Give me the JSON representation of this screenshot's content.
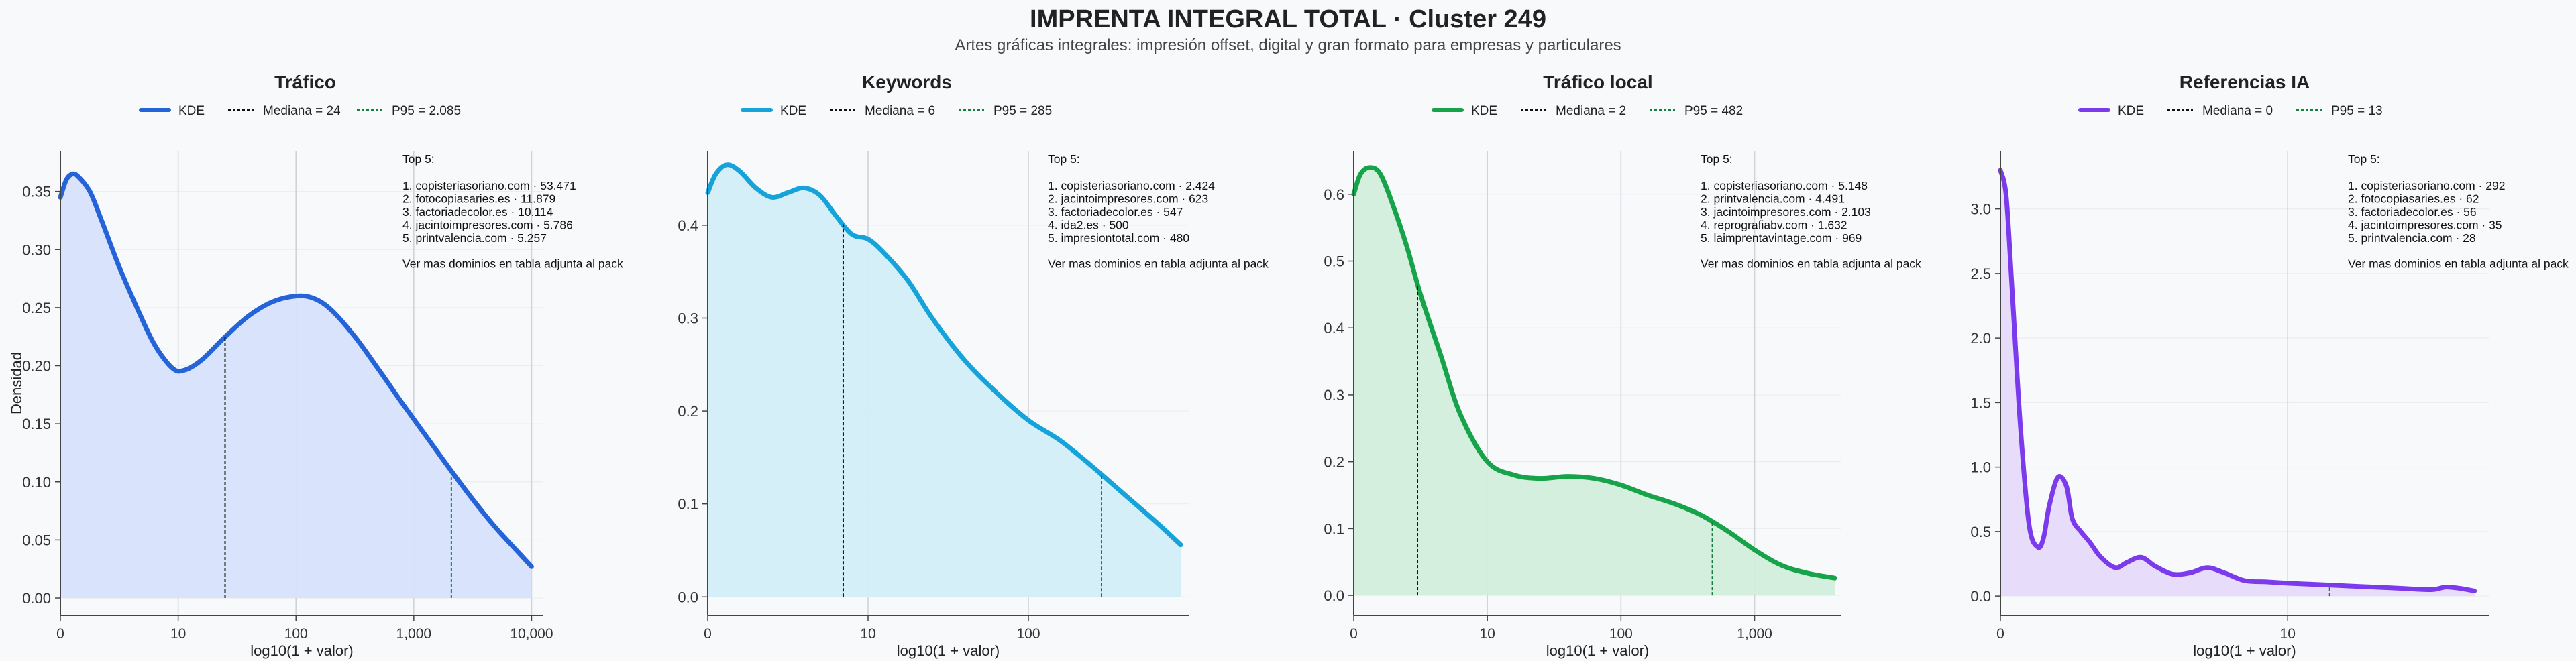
{
  "title": "IMPRENTA INTEGRAL TOTAL · Cluster 249",
  "subtitle": "Artes gráficas integrales: impresión offset, digital y gran formato para empresas y particulares",
  "colors": {
    "trafico": "#2563d9",
    "keywords": "#16a3d9",
    "trafico_local": "#16a34a",
    "referencias_ia": "#7c3aed",
    "median_line": "#111111",
    "p95_line": "#15803d"
  },
  "chart_data": [
    {
      "type": "area",
      "title": "Tráfico",
      "color": "#2563d9",
      "fill": "#d7e2fb",
      "xlabel": "log10(1 + valor)",
      "ylabel": "Densidad",
      "xlim": [
        0,
        4.1
      ],
      "ylim": [
        -0.015,
        0.385
      ],
      "xticks": [
        {
          "v": 0,
          "label": "0"
        },
        {
          "v": 1,
          "label": "10"
        },
        {
          "v": 2,
          "label": "100"
        },
        {
          "v": 3,
          "label": "1,000"
        },
        {
          "v": 4,
          "label": "10,000"
        }
      ],
      "yticks": [
        {
          "v": 0,
          "label": "0.00"
        },
        {
          "v": 0.05,
          "label": "0.05"
        },
        {
          "v": 0.1,
          "label": "0.10"
        },
        {
          "v": 0.15,
          "label": "0.15"
        },
        {
          "v": 0.2,
          "label": "0.20"
        },
        {
          "v": 0.25,
          "label": "0.25"
        },
        {
          "v": 0.3,
          "label": "0.30"
        },
        {
          "v": 0.35,
          "label": "0.35"
        }
      ],
      "legend": {
        "kde": "KDE",
        "median": "Mediana = 24",
        "p95": "P95 = 2.085"
      },
      "median_x": 1.398,
      "p95_x": 3.319,
      "x": [
        0,
        0.05,
        0.1,
        0.15,
        0.25,
        0.35,
        0.5,
        0.65,
        0.8,
        0.95,
        1.05,
        1.2,
        1.4,
        1.6,
        1.8,
        2.0,
        2.15,
        2.3,
        2.5,
        2.7,
        2.9,
        3.1,
        3.3,
        3.5,
        3.7,
        3.9,
        4.0
      ],
      "density": [
        0.345,
        0.36,
        0.365,
        0.363,
        0.35,
        0.325,
        0.285,
        0.25,
        0.218,
        0.198,
        0.196,
        0.205,
        0.225,
        0.243,
        0.255,
        0.26,
        0.258,
        0.248,
        0.225,
        0.197,
        0.168,
        0.14,
        0.112,
        0.085,
        0.06,
        0.038,
        0.027
      ],
      "top5_title": "Top 5:",
      "top5": [
        "1. copisteriasoriano.com · 53.471",
        "2. fotocopiasaries.es · 11.879",
        "3. factoriadecolor.es · 10.114",
        "4. jacintoimpresores.com · 5.786",
        "5. printvalencia.com · 5.257"
      ],
      "note": "Ver mas dominios en tabla adjunta al pack"
    },
    {
      "type": "area",
      "title": "Keywords",
      "color": "#16a3d9",
      "fill": "#d3eef9",
      "xlabel": "log10(1 + valor)",
      "ylabel": "",
      "xlim": [
        0,
        3.0
      ],
      "ylim": [
        -0.02,
        0.48
      ],
      "xticks": [
        {
          "v": 0,
          "label": "0"
        },
        {
          "v": 1,
          "label": "10"
        },
        {
          "v": 2,
          "label": "100"
        }
      ],
      "yticks": [
        {
          "v": 0,
          "label": "0.0"
        },
        {
          "v": 0.1,
          "label": "0.1"
        },
        {
          "v": 0.2,
          "label": "0.2"
        },
        {
          "v": 0.3,
          "label": "0.3"
        },
        {
          "v": 0.4,
          "label": "0.4"
        }
      ],
      "legend": {
        "kde": "KDE",
        "median": "Mediana = 6",
        "p95": "P95 = 285"
      },
      "median_x": 0.845,
      "p95_x": 2.456,
      "x": [
        0,
        0.05,
        0.12,
        0.2,
        0.3,
        0.4,
        0.5,
        0.6,
        0.7,
        0.8,
        0.9,
        1.0,
        1.1,
        1.25,
        1.4,
        1.6,
        1.8,
        2.0,
        2.2,
        2.4,
        2.6,
        2.8,
        2.95
      ],
      "density": [
        0.435,
        0.455,
        0.465,
        0.458,
        0.44,
        0.43,
        0.435,
        0.44,
        0.432,
        0.41,
        0.39,
        0.385,
        0.37,
        0.34,
        0.3,
        0.255,
        0.22,
        0.19,
        0.168,
        0.14,
        0.11,
        0.08,
        0.056
      ],
      "top5_title": "Top 5:",
      "top5": [
        "1. copisteriasoriano.com · 2.424",
        "2. jacintoimpresores.com · 623",
        "3. factoriadecolor.es · 547",
        "4. ida2.es · 500",
        "5. impresiontotal.com · 480"
      ],
      "note": "Ver mas dominios en tabla adjunta al pack"
    },
    {
      "type": "area",
      "title": "Tráfico local",
      "color": "#16a34a",
      "fill": "#d3eedc",
      "xlabel": "log10(1 + valor)",
      "ylabel": "",
      "xlim": [
        0,
        3.65
      ],
      "ylim": [
        -0.03,
        0.665
      ],
      "xticks": [
        {
          "v": 0,
          "label": "0"
        },
        {
          "v": 1,
          "label": "10"
        },
        {
          "v": 2,
          "label": "100"
        },
        {
          "v": 3,
          "label": "1,000"
        }
      ],
      "yticks": [
        {
          "v": 0,
          "label": "0.0"
        },
        {
          "v": 0.1,
          "label": "0.1"
        },
        {
          "v": 0.2,
          "label": "0.2"
        },
        {
          "v": 0.3,
          "label": "0.3"
        },
        {
          "v": 0.4,
          "label": "0.4"
        },
        {
          "v": 0.5,
          "label": "0.5"
        },
        {
          "v": 0.6,
          "label": "0.6"
        }
      ],
      "legend": {
        "kde": "KDE",
        "median": "Mediana = 2",
        "p95": "P95 = 482"
      },
      "median_x": 0.477,
      "p95_x": 2.684,
      "x": [
        0,
        0.05,
        0.12,
        0.2,
        0.3,
        0.4,
        0.5,
        0.65,
        0.8,
        1.0,
        1.2,
        1.4,
        1.6,
        1.8,
        2.0,
        2.2,
        2.4,
        2.6,
        2.8,
        3.0,
        3.2,
        3.4,
        3.6
      ],
      "density": [
        0.6,
        0.63,
        0.64,
        0.63,
        0.58,
        0.52,
        0.45,
        0.36,
        0.27,
        0.2,
        0.18,
        0.175,
        0.178,
        0.175,
        0.165,
        0.15,
        0.137,
        0.12,
        0.096,
        0.068,
        0.045,
        0.033,
        0.026
      ],
      "top5_title": "Top 5:",
      "top5": [
        "1. copisteriasoriano.com · 5.148",
        "2. printvalencia.com · 4.491",
        "3. jacintoimpresores.com · 2.103",
        "4. reprografiabv.com · 1.632",
        "5. laimprentavintage.com · 969"
      ],
      "note": "Ver mas dominios en tabla adjunta al pack"
    },
    {
      "type": "area",
      "title": "Referencias IA",
      "color": "#7c3aed",
      "fill": "#e6dafa",
      "xlabel": "log10(1 + valor)",
      "ylabel": "",
      "xlim": [
        0,
        1.7
      ],
      "ylim": [
        -0.15,
        3.45
      ],
      "xticks": [
        {
          "v": 0,
          "label": "0"
        },
        {
          "v": 1,
          "label": "10"
        }
      ],
      "yticks": [
        {
          "v": 0,
          "label": "0.0"
        },
        {
          "v": 0.5,
          "label": "0.5"
        },
        {
          "v": 1,
          "label": "1.0"
        },
        {
          "v": 1.5,
          "label": "1.5"
        },
        {
          "v": 2,
          "label": "2.0"
        },
        {
          "v": 2.5,
          "label": "2.5"
        },
        {
          "v": 3,
          "label": "3.0"
        }
      ],
      "legend": {
        "kde": "KDE",
        "median": "Mediana = 0",
        "p95": "P95 = 13"
      },
      "median_x": 0,
      "p95_x": 1.146,
      "x": [
        0,
        0.02,
        0.04,
        0.07,
        0.1,
        0.13,
        0.15,
        0.17,
        0.2,
        0.23,
        0.25,
        0.28,
        0.31,
        0.35,
        0.4,
        0.44,
        0.49,
        0.54,
        0.6,
        0.66,
        0.72,
        0.78,
        0.85,
        0.93,
        1.0,
        1.1,
        1.2,
        1.3,
        1.4,
        1.5,
        1.55,
        1.6,
        1.65
      ],
      "density": [
        3.3,
        3.1,
        2.4,
        1.3,
        0.55,
        0.38,
        0.45,
        0.7,
        0.92,
        0.85,
        0.6,
        0.5,
        0.42,
        0.3,
        0.22,
        0.26,
        0.3,
        0.23,
        0.17,
        0.18,
        0.22,
        0.18,
        0.12,
        0.11,
        0.1,
        0.09,
        0.08,
        0.07,
        0.06,
        0.05,
        0.07,
        0.06,
        0.04
      ],
      "top5_title": "Top 5:",
      "top5": [
        "1. copisteriasoriano.com · 292",
        "2. fotocopiasaries.es · 62",
        "3. factoriadecolor.es · 56",
        "4. jacintoimpresores.com · 35",
        "5. printvalencia.com · 28"
      ],
      "note": "Ver mas dominios en tabla adjunta al pack"
    }
  ]
}
